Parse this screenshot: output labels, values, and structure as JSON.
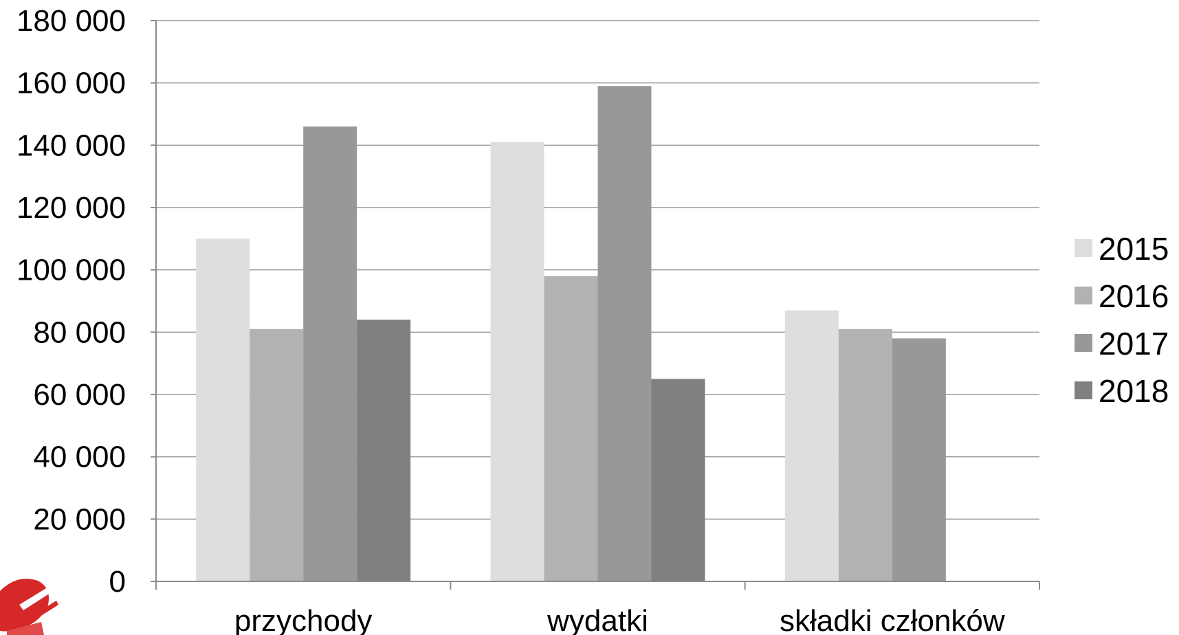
{
  "chart_data": {
    "type": "bar",
    "categories": [
      "przychody",
      "wydatki",
      "składki członków"
    ],
    "series": [
      {
        "name": "2015",
        "color": "#dedede",
        "values": [
          110000,
          141000,
          87000
        ]
      },
      {
        "name": "2016",
        "color": "#b2b2b2",
        "values": [
          81000,
          98000,
          81000
        ]
      },
      {
        "name": "2017",
        "color": "#989898",
        "values": [
          146000,
          159000,
          78000
        ]
      },
      {
        "name": "2018",
        "color": "#808080",
        "values": [
          84000,
          65000,
          0
        ]
      }
    ],
    "ylim": [
      0,
      180000
    ],
    "yticks": [
      0,
      20000,
      40000,
      60000,
      80000,
      100000,
      120000,
      140000,
      160000,
      180000
    ],
    "ytick_labels": [
      "0",
      "20 000",
      "40 000",
      "60 000",
      "80 000",
      "100 000",
      "120 000",
      "140 000",
      "160 000",
      "180 000"
    ],
    "grid": true,
    "legend_position": "right"
  },
  "logo": {
    "name": "red-logo-icon",
    "color": "#d62828"
  }
}
